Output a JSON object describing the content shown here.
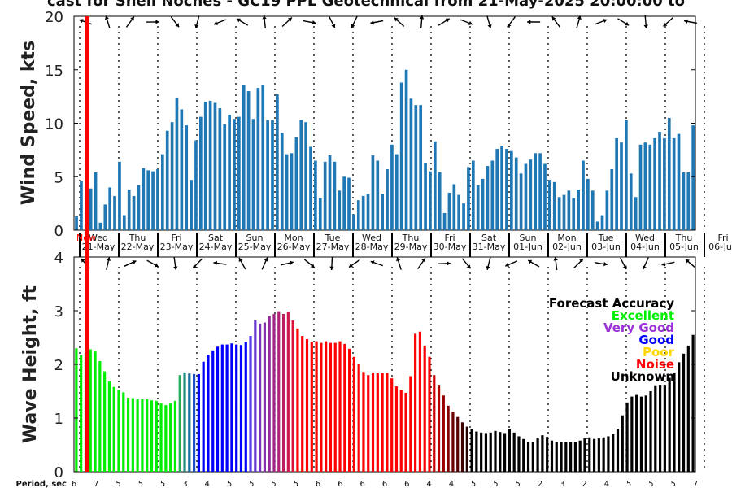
{
  "title": "cast for Shell Noches - GC19 PPL Geotechnical from 21-May-2025 20:00:00 to",
  "now_label": "Now",
  "colors": {
    "wind_bar": "#1f77b4",
    "now_line": "#ff0000",
    "excellent": "#00ff00",
    "very_good": "#9b30d9",
    "good": "#0000ff",
    "poor": "#ffd700",
    "noise": "#ff0000",
    "unknown": "#000000",
    "forecast_accuracy": "#000000"
  },
  "legend": {
    "title": "Forecast Accuracy",
    "items": [
      {
        "label": "Excellent",
        "color": "#00ff00"
      },
      {
        "label": "Very Good",
        "color": "#9b30d9"
      },
      {
        "label": "Good",
        "color": "#0000ff"
      },
      {
        "label": "Poor",
        "color": "#ffd700"
      },
      {
        "label": "Noise",
        "color": "#ff0000"
      },
      {
        "label": "Unknown",
        "color": "#000000"
      }
    ]
  },
  "period_label": "Period, sec",
  "periods": [
    "6",
    "7",
    "5",
    "5",
    "5",
    "3",
    "4",
    "5",
    "5",
    "5",
    "5",
    "6",
    "6",
    "6",
    "6",
    "6",
    "4",
    "4",
    "5",
    "5",
    "5",
    "2",
    "3",
    "2",
    "4",
    "5",
    "5",
    "5",
    "7"
  ],
  "chart_data": [
    {
      "type": "bar",
      "ylabel": "Wind Speed, kts",
      "ylim": [
        0,
        20
      ],
      "yticks": [
        0,
        5,
        10,
        15,
        20
      ],
      "days": [
        {
          "dow": "Wed",
          "date": "21-May"
        },
        {
          "dow": "Thu",
          "date": "22-May"
        },
        {
          "dow": "Fri",
          "date": "23-May"
        },
        {
          "dow": "Sat",
          "date": "24-May"
        },
        {
          "dow": "Sun",
          "date": "25-May"
        },
        {
          "dow": "Mon",
          "date": "26-May"
        },
        {
          "dow": "Tue",
          "date": "27-May"
        },
        {
          "dow": "Wed",
          "date": "28-May"
        },
        {
          "dow": "Thu",
          "date": "29-May"
        },
        {
          "dow": "Fri",
          "date": "30-May"
        },
        {
          "dow": "Sat",
          "date": "31-May"
        },
        {
          "dow": "Sun",
          "date": "01-Jun"
        },
        {
          "dow": "Mon",
          "date": "02-Jun"
        },
        {
          "dow": "Tue",
          "date": "03-Jun"
        },
        {
          "dow": "Wed",
          "date": "04-Jun"
        },
        {
          "dow": "Thu",
          "date": "05-Jun"
        },
        {
          "dow": "Fri",
          "date": "06-Jun"
        }
      ],
      "values": [
        1.3,
        4.6,
        0.6,
        3.9,
        5.4,
        0.7,
        2.4,
        4.0,
        3.2,
        6.4,
        1.4,
        3.8,
        3.2,
        4.2,
        5.8,
        5.6,
        5.5,
        5.7,
        7.1,
        9.3,
        10.1,
        12.4,
        11.3,
        9.8,
        4.7,
        8.4,
        10.6,
        12.0,
        12.1,
        11.9,
        11.4,
        9.9,
        10.8,
        10.4,
        10.6,
        13.6,
        13.0,
        10.4,
        13.3,
        13.6,
        10.3,
        10.3,
        12.7,
        9.1,
        7.1,
        7.2,
        8.7,
        10.3,
        10.1,
        7.8,
        6.5,
        3.0,
        6.4,
        7.0,
        6.4,
        3.7,
        5.0,
        4.9,
        1.5,
        2.8,
        3.2,
        3.4,
        7.0,
        6.5,
        3.4,
        5.7,
        8.0,
        7.1,
        13.8,
        15.0,
        12.3,
        11.7,
        11.7,
        6.3,
        5.5,
        8.3,
        5.4,
        1.6,
        3.5,
        4.3,
        3.3,
        2.5,
        5.9,
        6.5,
        4.2,
        4.8,
        6.0,
        6.5,
        7.6,
        7.9,
        7.6,
        7.4,
        6.8,
        5.3,
        6.2,
        6.6,
        7.2,
        7.2,
        6.2,
        4.7,
        4.5,
        3.1,
        3.3,
        3.7,
        3.0,
        3.8,
        6.5,
        4.8,
        3.7,
        0.8,
        1.4,
        3.7,
        5.7,
        8.6,
        8.2,
        10.3,
        5.3,
        3.1,
        8.0,
        8.2,
        8.0,
        8.6,
        9.2,
        8.6,
        10.5,
        8.6,
        9.0,
        5.4,
        5.4,
        9.8
      ]
    },
    {
      "type": "bar",
      "ylabel": "Wave Height, ft",
      "ylim": [
        0,
        4
      ],
      "yticks": [
        0,
        1,
        2,
        3,
        4
      ],
      "values": [
        2.3,
        2.17,
        2.23,
        2.28,
        2.24,
        2.06,
        1.87,
        1.68,
        1.58,
        1.52,
        1.48,
        1.38,
        1.37,
        1.35,
        1.35,
        1.35,
        1.33,
        1.32,
        1.27,
        1.24,
        1.27,
        1.32,
        1.8,
        1.85,
        1.83,
        1.82,
        1.82,
        2.05,
        2.18,
        2.26,
        2.33,
        2.37,
        2.37,
        2.39,
        2.37,
        2.36,
        2.41,
        2.53,
        2.82,
        2.76,
        2.78,
        2.9,
        2.94,
        2.99,
        2.94,
        2.98,
        2.82,
        2.67,
        2.53,
        2.47,
        2.42,
        2.43,
        2.4,
        2.43,
        2.4,
        2.4,
        2.43,
        2.38,
        2.29,
        2.14,
        2.0,
        1.86,
        1.8,
        1.85,
        1.84,
        1.84,
        1.84,
        1.74,
        1.59,
        1.52,
        1.47,
        1.78,
        2.57,
        2.61,
        2.35,
        2.14,
        1.8,
        1.62,
        1.42,
        1.23,
        1.12,
        1.02,
        0.92,
        0.84,
        0.79,
        0.75,
        0.73,
        0.72,
        0.73,
        0.76,
        0.74,
        0.72,
        0.8,
        0.73,
        0.66,
        0.61,
        0.55,
        0.55,
        0.62,
        0.68,
        0.65,
        0.58,
        0.55,
        0.55,
        0.55,
        0.55,
        0.56,
        0.58,
        0.62,
        0.64,
        0.61,
        0.62,
        0.64,
        0.66,
        0.7,
        0.8,
        1.05,
        1.29,
        1.4,
        1.43,
        1.4,
        1.42,
        1.5,
        1.61,
        1.62,
        1.62,
        1.75,
        1.85,
        2.04,
        2.2,
        2.35,
        2.55
      ],
      "colors_by_index": [
        {
          "from": 0,
          "to": 21,
          "class": "excellent"
        },
        {
          "from": 22,
          "to": 25,
          "class": "excellent_teal"
        },
        {
          "from": 26,
          "to": 36,
          "class": "good"
        },
        {
          "from": 37,
          "to": 46,
          "class": "very_good_mix"
        },
        {
          "from": 47,
          "to": 75,
          "class": "noise"
        },
        {
          "from": 76,
          "to": 83,
          "class": "noise_dark"
        },
        {
          "from": 84,
          "to": 131,
          "class": "unknown"
        }
      ]
    }
  ]
}
